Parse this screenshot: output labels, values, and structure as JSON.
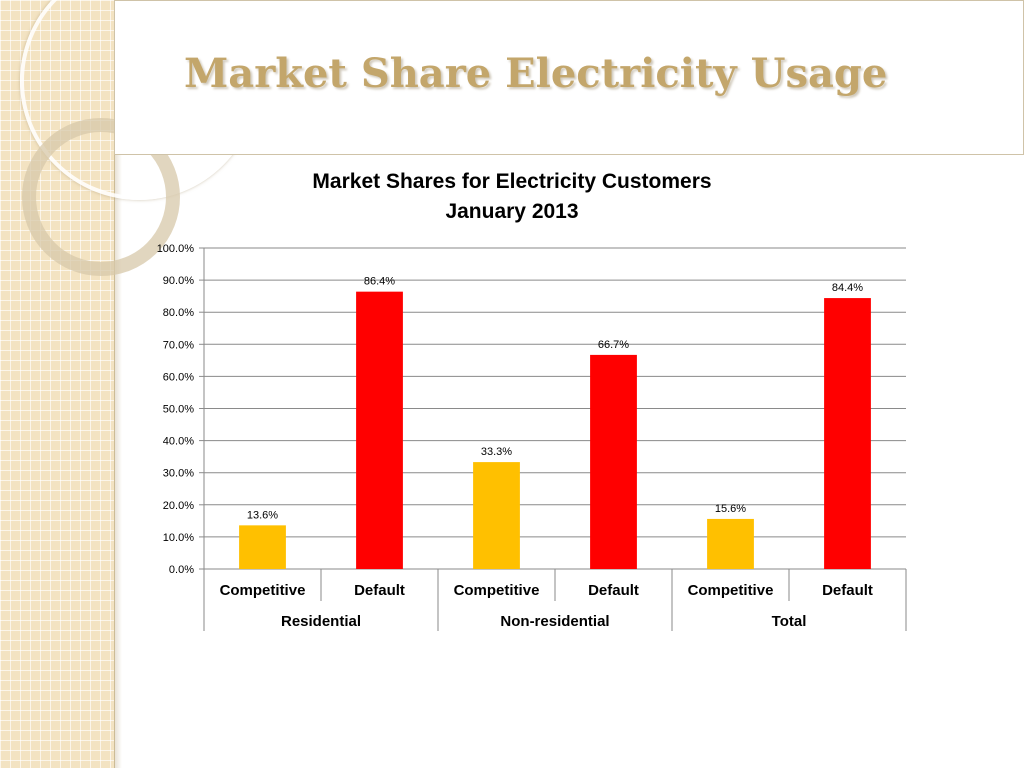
{
  "slide": {
    "title": "Market Share Electricity Usage"
  },
  "colors": {
    "competitive": "#ffc000",
    "default": "#ff0000",
    "title": "#c3a66b",
    "side_panel": "#f3e3c2"
  },
  "chart_data": {
    "type": "bar",
    "title": "Market Shares for Electricity Customers",
    "subtitle": "January 2013",
    "categories": [
      "Competitive",
      "Default",
      "Competitive",
      "Default",
      "Competitive",
      "Default"
    ],
    "groups": [
      "Residential",
      "Non-residential",
      "Total"
    ],
    "values": [
      13.6,
      86.4,
      33.3,
      66.7,
      15.6,
      84.4
    ],
    "value_labels": [
      "13.6%",
      "86.4%",
      "33.3%",
      "66.7%",
      "15.6%",
      "84.4%"
    ],
    "yticks": [
      "0.0%",
      "10.0%",
      "20.0%",
      "30.0%",
      "40.0%",
      "50.0%",
      "60.0%",
      "70.0%",
      "80.0%",
      "90.0%",
      "100.0%"
    ],
    "ylim": [
      0,
      100
    ],
    "grid": true,
    "legend": "none",
    "xlabel": "",
    "ylabel": ""
  }
}
